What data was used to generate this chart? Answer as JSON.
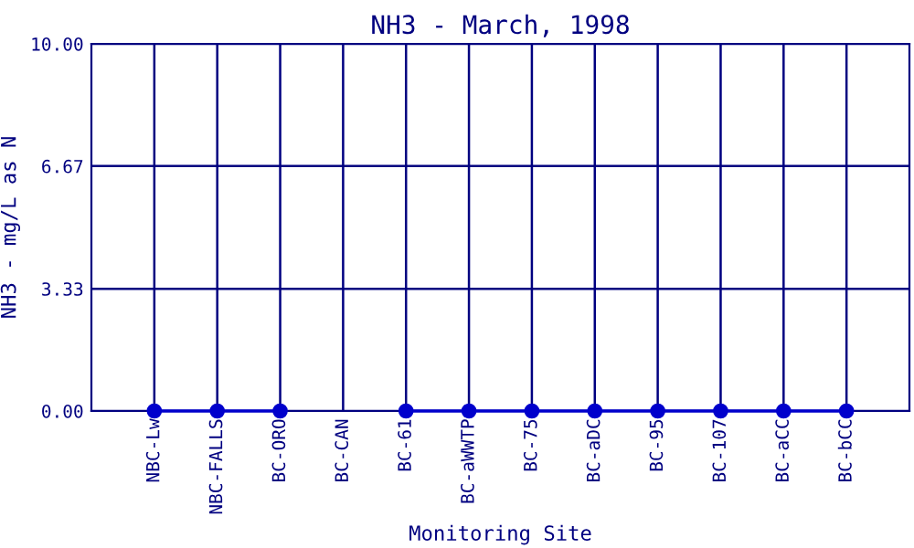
{
  "chart_data": {
    "type": "line",
    "title": "NH3 - March, 1998",
    "xlabel": "Monitoring Site",
    "ylabel": "NH3 - mg/L as N",
    "categories": [
      "NBC-Lw",
      "NBC-FALLS",
      "BC-ORO",
      "BC-CAN",
      "BC-61",
      "BC-aWWTP",
      "BC-75",
      "BC-aDC",
      "BC-95",
      "BC-107",
      "BC-aCC",
      "BC-bCC"
    ],
    "series": [
      {
        "color": "#0000cc",
        "values": [
          0,
          0,
          0,
          null,
          0,
          0,
          0,
          0,
          0,
          0,
          0,
          0
        ]
      }
    ],
    "ylim": [
      0,
      10
    ],
    "yticks": [
      {
        "value": 0,
        "label": "0.00"
      },
      {
        "value": 3.33,
        "label": "3.33"
      },
      {
        "value": 6.67,
        "label": "6.67"
      },
      {
        "value": 10,
        "label": "10.00"
      }
    ],
    "grid": true,
    "marker": "circle",
    "line_style": "solid"
  }
}
